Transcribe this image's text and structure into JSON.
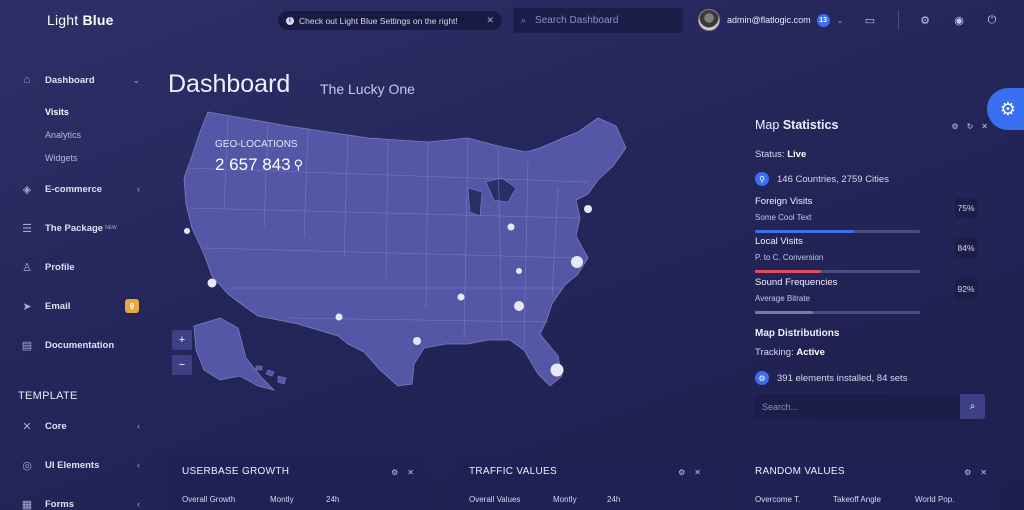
{
  "brand": {
    "light": "Light",
    "bold": "Blue"
  },
  "sidebar": {
    "items": [
      {
        "label": "Dashboard",
        "icon": "home-icon",
        "chevron": "⌄"
      },
      {
        "label": "E-commerce",
        "icon": "cart-icon",
        "chevron": "‹"
      },
      {
        "label": "The Package",
        "icon": "database-icon",
        "sup": "NEW"
      },
      {
        "label": "Profile",
        "icon": "user-icon"
      },
      {
        "label": "Email",
        "icon": "send-icon",
        "badge": "9"
      },
      {
        "label": "Documentation",
        "icon": "document-icon"
      },
      {
        "label": "Core",
        "icon": "tools-icon",
        "chevron": "‹"
      },
      {
        "label": "UI Elements",
        "icon": "layers-icon",
        "chevron": "‹"
      },
      {
        "label": "Forms",
        "icon": "form-icon",
        "chevron": "‹"
      }
    ],
    "sub_items": [
      "Visits",
      "Analytics",
      "Widgets"
    ],
    "section_label": "TEMPLATE"
  },
  "topbar": {
    "alert_text": "Check out Light Blue Settings on the right!",
    "search_placeholder": "Search Dashboard",
    "user_email": "admin@flatlogic.com",
    "notification_count": "13"
  },
  "page": {
    "title": "Dashboard",
    "subtitle": "The Lucky One"
  },
  "map": {
    "geo_label": "GEO-LOCATIONS",
    "geo_value": "2 657 843"
  },
  "stats": {
    "title_light": "Map",
    "title_bold": "Statistics",
    "status_label": "Status:",
    "status_value": "Live",
    "countries": "146 Countries, 2759 Cities",
    "metrics": [
      {
        "name": "Foreign Visits",
        "desc": "Some Cool Text",
        "pct": "75%",
        "level": 0.6,
        "color": "#3a6ff0"
      },
      {
        "name": "Local Visits",
        "desc": "P. to C. Conversion",
        "pct": "84%",
        "level": 0.4,
        "color": "#e04f5f"
      },
      {
        "name": "Sound Frequencies",
        "desc": "Average Bitrate",
        "pct": "92%",
        "level": 0.35,
        "color": "#7a7c9c"
      }
    ],
    "dist_title": "Map Distributions",
    "tracking_label": "Tracking:",
    "tracking_value": "Active",
    "elements": "391 elements installed, 84 sets",
    "search_placeholder": "Search..."
  },
  "widgets": [
    {
      "title": "USERBASE GROWTH",
      "cols": [
        "Overall Growth",
        "Montly",
        "24h"
      ]
    },
    {
      "title": "TRAFFIC VALUES",
      "cols": [
        "Overall Values",
        "Montly",
        "24h"
      ]
    },
    {
      "title": "RANDOM VALUES",
      "cols": [
        "Overcome T.",
        "Takeoff Angle",
        "World Pop."
      ]
    }
  ]
}
